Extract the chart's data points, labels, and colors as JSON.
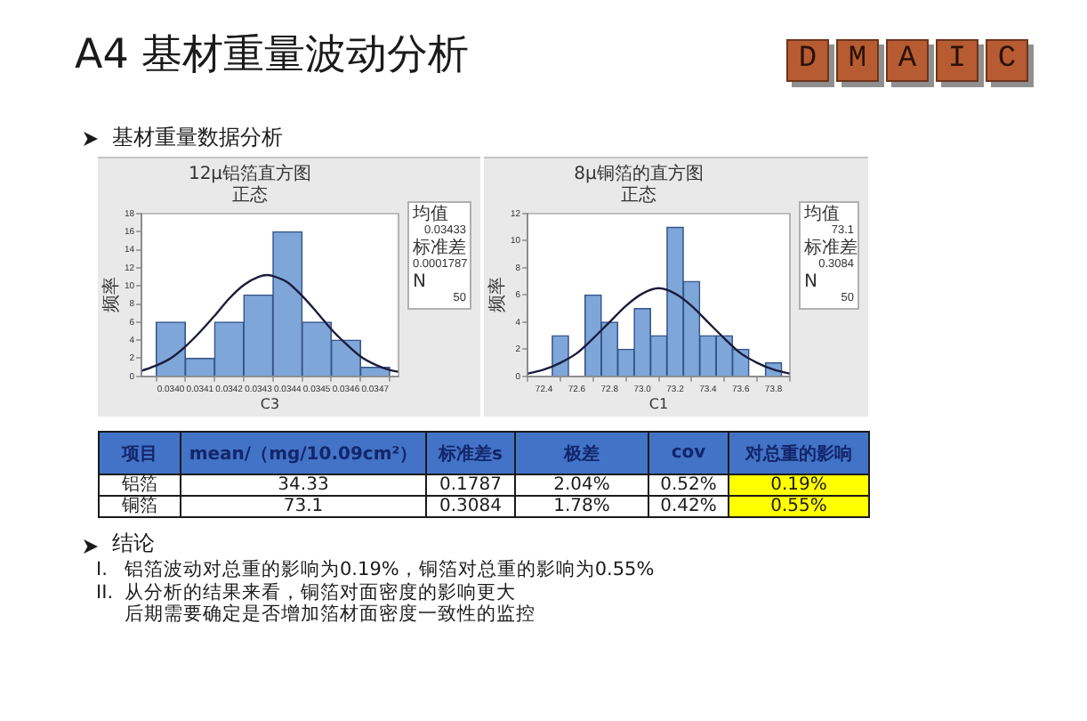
{
  "chart_data": [
    {
      "type": "other",
      "title": "A4 基材重量波动分析",
      "subtitle": "基材重量数据分析",
      "annotations": [
        "D",
        "M",
        "A",
        "I",
        "C"
      ]
    },
    {
      "type": "histogram",
      "title": "12μ铝箔直方图",
      "subtitle": "正态",
      "xlabel": "C3",
      "ylabel": "频率",
      "bins": [
        0.03395,
        0.03405,
        0.03415,
        0.03425,
        0.03435,
        0.03445,
        0.03455,
        0.03465,
        0.03475
      ],
      "values": [
        6,
        2,
        6,
        9,
        16,
        6,
        4,
        1
      ],
      "color": "#7ea6d8",
      "series": [
        {
          "type": "line",
          "color": "#1c1c3c",
          "x": [
            0.0339,
            0.03395,
            0.034,
            0.03405,
            0.0341,
            0.03415,
            0.0342,
            0.03425,
            0.0343,
            0.03433,
            0.03435,
            0.0344,
            0.03445,
            0.0345,
            0.03455,
            0.0346,
            0.03465,
            0.0347,
            0.03475,
            0.03478
          ],
          "values": [
            0.6,
            1.2,
            2.0,
            3.3,
            4.9,
            6.7,
            8.6,
            10.1,
            11.0,
            11.2,
            11.1,
            10.4,
            8.9,
            7.1,
            5.2,
            3.6,
            2.2,
            1.3,
            0.7,
            0.5
          ]
        }
      ],
      "xlim": [
        0.0339,
        0.03478
      ],
      "xticks": [
        {
          "value": 0.034,
          "label": "0.0340"
        },
        0.0341,
        0.0342,
        0.0343,
        0.0344,
        0.0345,
        0.0346,
        0.0347
      ],
      "ylim": [
        0,
        18
      ],
      "yticks": [
        0,
        2,
        4,
        6,
        8,
        10,
        12,
        14,
        16,
        18
      ],
      "annotations": [
        "均值",
        "0.03433",
        "标准差",
        "0.0001787",
        "N",
        "50"
      ]
    },
    {
      "type": "histogram",
      "title": "8μ铜箔的直方图",
      "subtitle": "正态",
      "xlabel": "C1",
      "ylabel": "频率",
      "bins": [
        72.45,
        72.55,
        72.65,
        72.75,
        72.85,
        72.95,
        73.05,
        73.15,
        73.25,
        73.35,
        73.45,
        73.55,
        73.65,
        73.75,
        73.85
      ],
      "values": [
        3,
        0,
        6,
        4,
        2,
        5,
        3,
        11,
        7,
        3,
        3,
        2,
        0,
        1
      ],
      "color": "#7ea6d8",
      "series": [
        {
          "type": "line",
          "color": "#1c1c3c",
          "x": [
            72.3,
            72.4,
            72.5,
            72.6,
            72.7,
            72.8,
            72.9,
            73.0,
            73.1,
            73.2,
            73.3,
            73.4,
            73.5,
            73.6,
            73.7,
            73.8,
            73.9
          ],
          "values": [
            0.2,
            0.5,
            1.0,
            1.7,
            2.8,
            4.0,
            5.2,
            6.1,
            6.5,
            6.1,
            5.2,
            4.0,
            2.8,
            1.7,
            1.0,
            0.5,
            0.2
          ]
        }
      ],
      "xlim": [
        72.3,
        73.9
      ],
      "xticks": [
        72.4,
        72.6,
        72.8,
        {
          "value": 73,
          "label": "73.0"
        },
        73.2,
        73.4,
        73.6,
        73.8
      ],
      "ylim": [
        0,
        12
      ],
      "yticks": [
        0,
        2,
        4,
        6,
        8,
        10,
        12
      ],
      "annotations": [
        "均值",
        "73.1",
        "标准差",
        "0.3084",
        "N",
        "50"
      ]
    },
    {
      "type": "other",
      "categories": [
        "项目",
        "mean/（mg/10.09cm²）",
        "标准差s",
        "极差",
        "cov",
        "对总重的影响"
      ],
      "cell_labels": [
        [
          "铝箔",
          "34.33",
          "0.1787",
          "2.04%",
          "0.52%",
          "0.19%"
        ],
        [
          "铜箔",
          "73.1",
          "0.3084",
          "1.78%",
          "0.42%",
          "0.55%"
        ]
      ]
    },
    {
      "type": "other",
      "title": "结论",
      "annotations": [
        "I.",
        "铝箔波动对总重的影响为0.19%，铜箔对总重的影响为0.55%",
        "II.",
        "从分析的结果来看，铜箔对面密度的影响更大",
        "后期需要确定是否增加箔材面密度一致性的监控"
      ]
    }
  ]
}
